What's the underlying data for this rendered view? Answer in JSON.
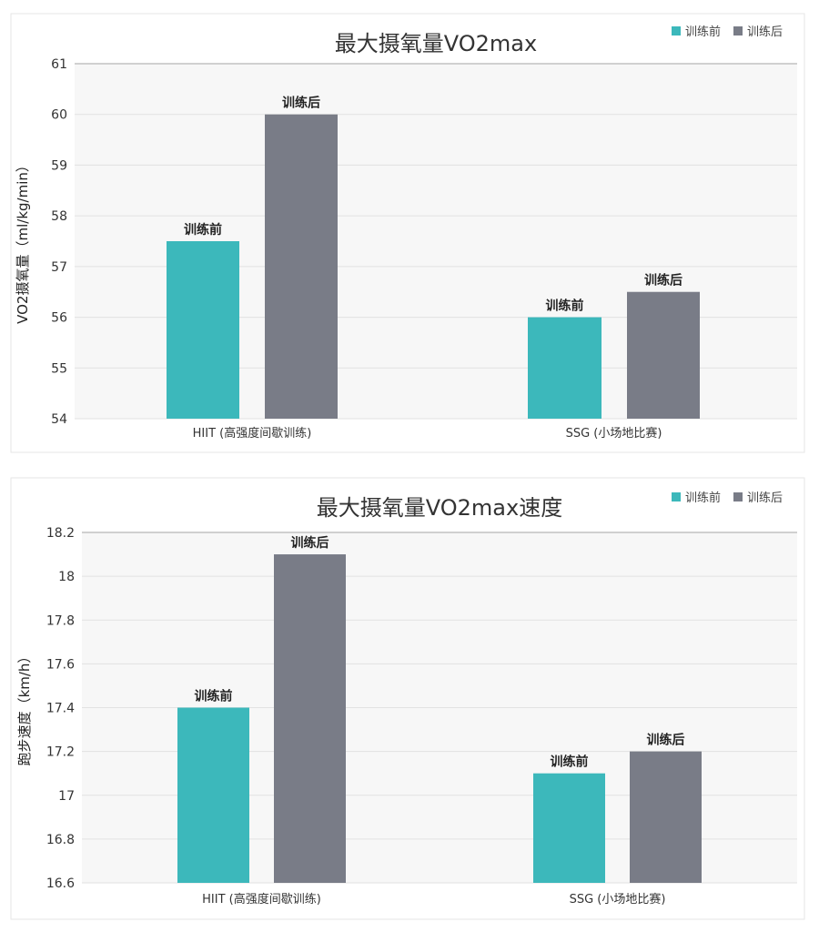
{
  "colors": {
    "before": "#3cb8bb",
    "after": "#797c87",
    "grid": "#e2e2e2",
    "text": "#333333"
  },
  "chart_data": [
    {
      "type": "bar",
      "title": "最大摄氧量VO2max",
      "xlabel": "",
      "ylabel": "VO2摄氧量（ml/kg/min）",
      "ylim": [
        54,
        61
      ],
      "yticks": [
        54,
        55,
        56,
        57,
        58,
        59,
        60,
        61
      ],
      "categories": [
        "HIIT (高强度间歇训练)",
        "SSG (小场地比赛)"
      ],
      "series": [
        {
          "name": "训练前",
          "values": [
            57.5,
            56
          ]
        },
        {
          "name": "训练后",
          "values": [
            60,
            56.5
          ]
        }
      ],
      "legend": "top-right",
      "grid": true
    },
    {
      "type": "bar",
      "title": "最大摄氧量VO2max速度",
      "xlabel": "",
      "ylabel": "跑步速度（km/h）",
      "ylim": [
        16.6,
        18.2
      ],
      "yticks": [
        16.6,
        16.8,
        17,
        17.2,
        17.4,
        17.6,
        17.8,
        18,
        18.2
      ],
      "categories": [
        "HIIT (高强度间歇训练)",
        "SSG (小场地比赛)"
      ],
      "series": [
        {
          "name": "训练前",
          "values": [
            17.4,
            17.1
          ]
        },
        {
          "name": "训练后",
          "values": [
            18.1,
            17.2
          ]
        }
      ],
      "legend": "top-right",
      "grid": true
    }
  ]
}
